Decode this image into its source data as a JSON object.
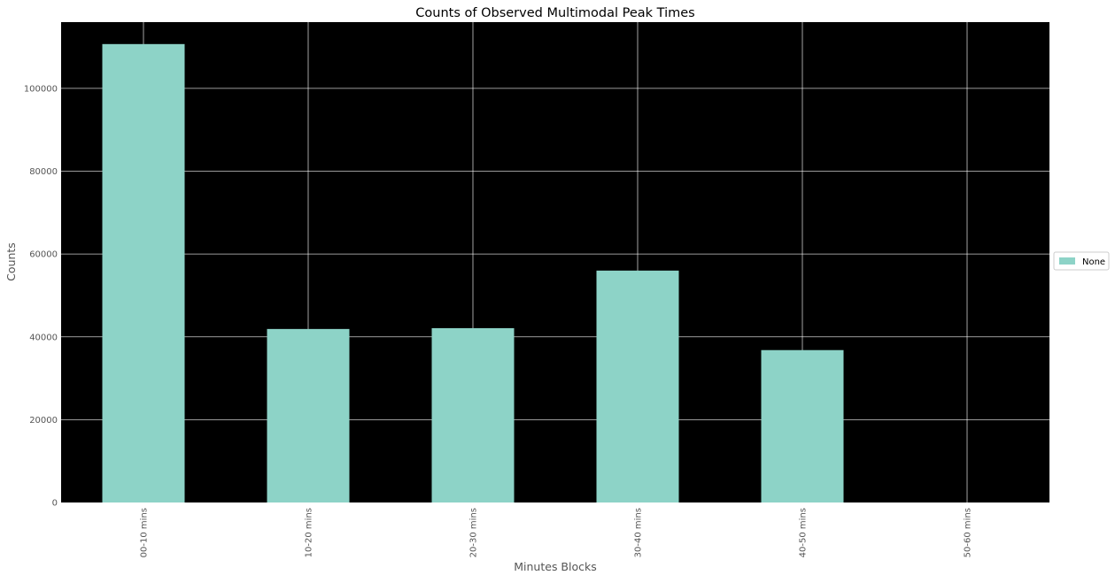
{
  "chart_data": {
    "type": "bar",
    "title": "Counts of Observed Multimodal Peak Times",
    "xlabel": "Minutes Blocks",
    "ylabel": "Counts",
    "categories": [
      "00-10 mins",
      "10-20 mins",
      "20-30 mins",
      "30-40 mins",
      "40-50 mins",
      "50-60 mins"
    ],
    "series": [
      {
        "name": "None",
        "values": [
          110700,
          41900,
          42100,
          56000,
          36800,
          0
        ]
      }
    ],
    "ylim": [
      0,
      116000
    ],
    "yticks": [
      0,
      20000,
      40000,
      60000,
      80000,
      100000
    ],
    "ytick_labels": [
      "0",
      "20000",
      "40000",
      "60000",
      "80000",
      "100000"
    ],
    "grid": true,
    "legend_position": "right",
    "colors": {
      "bar": "#8dd3c7",
      "plot_background": "#000000",
      "grid": "#ffffff",
      "text": "#555555",
      "title": "#000000"
    }
  }
}
